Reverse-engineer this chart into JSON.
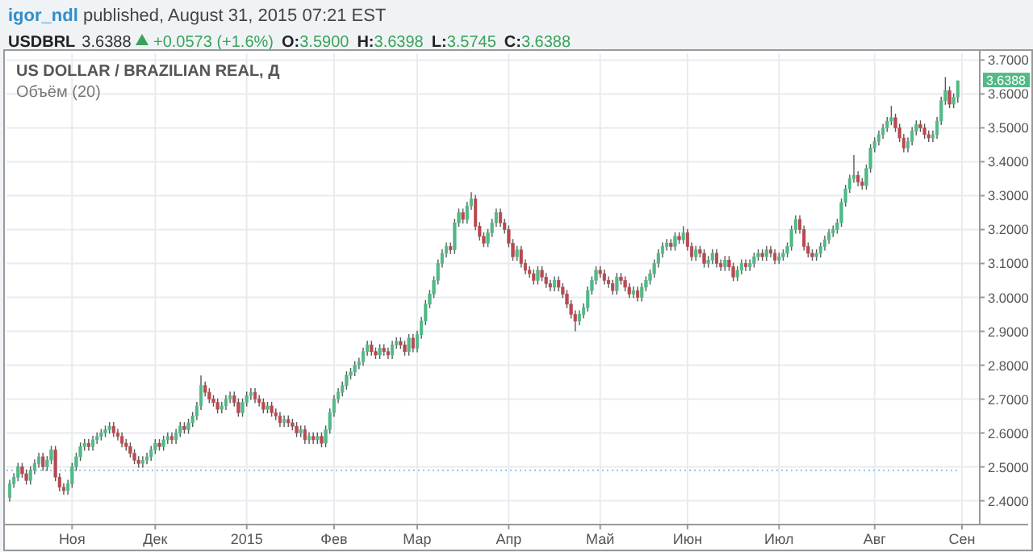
{
  "chart_data": {
    "type": "candlestick",
    "title": "US DOLLAR / BRAZILIAN REAL, Д",
    "annotations": [
      "igor_ndl published, August 31, 2015 07:21 EST",
      "USDBRL",
      "3.6388",
      "+0.0573 (+1.6%)",
      "O:3.5900",
      "H:3.6398",
      "L:3.5745",
      "C:3.6388",
      "Объём (20)",
      {
        "text": "3.6388",
        "y": 3.6388
      }
    ],
    "ylim": [
      2.33,
      3.72
    ],
    "yticks": [
      {
        "value": 2.4,
        "label": "2.4000"
      },
      {
        "value": 2.5,
        "label": "2.5000"
      },
      {
        "value": 2.6,
        "label": "2.6000"
      },
      {
        "value": 2.7,
        "label": "2.7000"
      },
      {
        "value": 2.8,
        "label": "2.8000"
      },
      {
        "value": 2.9,
        "label": "2.9000"
      },
      {
        "value": 3.0,
        "label": "3.0000"
      },
      {
        "value": 3.1,
        "label": "3.1000"
      },
      {
        "value": 3.2,
        "label": "3.2000"
      },
      {
        "value": 3.3,
        "label": "3.3000"
      },
      {
        "value": 3.4,
        "label": "3.4000"
      },
      {
        "value": 3.5,
        "label": "3.5000"
      },
      {
        "value": 3.6,
        "label": "3.6000"
      },
      {
        "value": 3.7,
        "label": "3.7000"
      }
    ],
    "categories": [
      null,
      null,
      null,
      null,
      null,
      null,
      null,
      null,
      null,
      null,
      null,
      null,
      null,
      null,
      null,
      "Ноя",
      null,
      null,
      null,
      null,
      null,
      null,
      null,
      null,
      null,
      null,
      null,
      null,
      null,
      null,
      null,
      null,
      null,
      null,
      null,
      "Дек",
      null,
      null,
      null,
      null,
      null,
      null,
      null,
      null,
      null,
      null,
      null,
      null,
      null,
      null,
      null,
      null,
      null,
      null,
      null,
      null,
      null,
      "2015",
      null,
      null,
      null,
      null,
      null,
      null,
      null,
      null,
      null,
      null,
      null,
      null,
      null,
      null,
      null,
      null,
      null,
      null,
      null,
      null,
      "Фев",
      null,
      null,
      null,
      null,
      null,
      null,
      null,
      null,
      null,
      null,
      null,
      null,
      null,
      null,
      null,
      null,
      null,
      null,
      null,
      "Мар",
      null,
      null,
      null,
      null,
      null,
      null,
      null,
      null,
      null,
      null,
      null,
      null,
      null,
      null,
      null,
      null,
      null,
      null,
      null,
      null,
      null,
      "Апр",
      null,
      null,
      null,
      null,
      null,
      null,
      null,
      null,
      null,
      null,
      null,
      null,
      null,
      null,
      null,
      null,
      null,
      null,
      null,
      null,
      null,
      "Май",
      null,
      null,
      null,
      null,
      null,
      null,
      null,
      null,
      null,
      null,
      null,
      null,
      null,
      null,
      null,
      null,
      null,
      null,
      null,
      null,
      "Июн",
      null,
      null,
      null,
      null,
      null,
      null,
      null,
      null,
      null,
      null,
      null,
      null,
      null,
      null,
      null,
      null,
      null,
      null,
      null,
      null,
      null,
      "Июл",
      null,
      null,
      null,
      null,
      null,
      null,
      null,
      null,
      null,
      null,
      null,
      null,
      null,
      null,
      null,
      null,
      null,
      null,
      null,
      null,
      null,
      null,
      "Авг",
      null,
      null,
      null,
      null,
      null,
      null,
      null,
      null,
      null,
      null,
      null,
      null,
      null,
      null,
      null,
      null,
      null,
      null,
      null,
      null,
      "Сен"
    ],
    "grid": true,
    "ref_lines": [
      {
        "axis": "y",
        "value": 2.49,
        "color": "#8fc1e8",
        "line_style": "dotted"
      }
    ],
    "ohlc": [
      [
        2.41,
        2.462,
        2.398,
        2.45
      ],
      [
        2.45,
        2.482,
        2.438,
        2.47
      ],
      [
        2.47,
        2.512,
        2.458,
        2.5
      ],
      [
        2.5,
        2.512,
        2.468,
        2.48
      ],
      [
        2.48,
        2.492,
        2.448,
        2.46
      ],
      [
        2.46,
        2.502,
        2.448,
        2.49
      ],
      [
        2.49,
        2.522,
        2.478,
        2.51
      ],
      [
        2.51,
        2.542,
        2.498,
        2.53
      ],
      [
        2.53,
        2.542,
        2.488,
        2.5
      ],
      [
        2.5,
        2.532,
        2.488,
        2.52
      ],
      [
        2.52,
        2.562,
        2.508,
        2.55
      ],
      [
        2.55,
        2.562,
        2.458,
        2.47
      ],
      [
        2.47,
        2.482,
        2.428,
        2.44
      ],
      [
        2.44,
        2.452,
        2.418,
        2.43
      ],
      [
        2.43,
        2.462,
        2.418,
        2.45
      ],
      [
        2.45,
        2.512,
        2.438,
        2.5
      ],
      [
        2.5,
        2.542,
        2.488,
        2.53
      ],
      [
        2.53,
        2.572,
        2.518,
        2.56
      ],
      [
        2.56,
        2.582,
        2.548,
        2.57
      ],
      [
        2.57,
        2.582,
        2.548,
        2.56
      ],
      [
        2.56,
        2.592,
        2.548,
        2.58
      ],
      [
        2.58,
        2.602,
        2.568,
        2.59
      ],
      [
        2.59,
        2.612,
        2.578,
        2.6
      ],
      [
        2.6,
        2.622,
        2.588,
        2.61
      ],
      [
        2.61,
        2.632,
        2.598,
        2.62
      ],
      [
        2.62,
        2.632,
        2.588,
        2.6
      ],
      [
        2.6,
        2.612,
        2.578,
        2.59
      ],
      [
        2.59,
        2.602,
        2.558,
        2.57
      ],
      [
        2.57,
        2.582,
        2.548,
        2.56
      ],
      [
        2.56,
        2.572,
        2.528,
        2.54
      ],
      [
        2.54,
        2.552,
        2.508,
        2.52
      ],
      [
        2.52,
        2.532,
        2.498,
        2.51
      ],
      [
        2.51,
        2.532,
        2.498,
        2.52
      ],
      [
        2.52,
        2.542,
        2.508,
        2.53
      ],
      [
        2.53,
        2.562,
        2.518,
        2.55
      ],
      [
        2.55,
        2.582,
        2.538,
        2.57
      ],
      [
        2.57,
        2.582,
        2.548,
        2.56
      ],
      [
        2.56,
        2.592,
        2.548,
        2.58
      ],
      [
        2.58,
        2.602,
        2.568,
        2.59
      ],
      [
        2.59,
        2.602,
        2.568,
        2.58
      ],
      [
        2.58,
        2.612,
        2.568,
        2.6
      ],
      [
        2.6,
        2.632,
        2.588,
        2.62
      ],
      [
        2.62,
        2.632,
        2.598,
        2.61
      ],
      [
        2.61,
        2.642,
        2.598,
        2.63
      ],
      [
        2.63,
        2.662,
        2.618,
        2.65
      ],
      [
        2.65,
        2.692,
        2.638,
        2.68
      ],
      [
        2.68,
        2.77,
        2.668,
        2.74
      ],
      [
        2.74,
        2.752,
        2.708,
        2.72
      ],
      [
        2.72,
        2.732,
        2.688,
        2.7
      ],
      [
        2.7,
        2.712,
        2.678,
        2.69
      ],
      [
        2.69,
        2.702,
        2.658,
        2.67
      ],
      [
        2.67,
        2.692,
        2.658,
        2.68
      ],
      [
        2.68,
        2.712,
        2.668,
        2.7
      ],
      [
        2.7,
        2.722,
        2.688,
        2.71
      ],
      [
        2.71,
        2.722,
        2.678,
        2.69
      ],
      [
        2.69,
        2.702,
        2.648,
        2.66
      ],
      [
        2.66,
        2.702,
        2.648,
        2.69
      ],
      [
        2.69,
        2.722,
        2.678,
        2.71
      ],
      [
        2.71,
        2.732,
        2.698,
        2.72
      ],
      [
        2.72,
        2.732,
        2.688,
        2.7
      ],
      [
        2.7,
        2.712,
        2.678,
        2.69
      ],
      [
        2.69,
        2.702,
        2.658,
        2.67
      ],
      [
        2.67,
        2.692,
        2.658,
        2.68
      ],
      [
        2.68,
        2.692,
        2.648,
        2.66
      ],
      [
        2.66,
        2.672,
        2.638,
        2.65
      ],
      [
        2.65,
        2.662,
        2.618,
        2.63
      ],
      [
        2.63,
        2.652,
        2.618,
        2.64
      ],
      [
        2.64,
        2.652,
        2.618,
        2.63
      ],
      [
        2.63,
        2.642,
        2.608,
        2.62
      ],
      [
        2.62,
        2.632,
        2.588,
        2.6
      ],
      [
        2.6,
        2.622,
        2.588,
        2.61
      ],
      [
        2.61,
        2.622,
        2.568,
        2.58
      ],
      [
        2.58,
        2.602,
        2.568,
        2.59
      ],
      [
        2.59,
        2.602,
        2.568,
        2.58
      ],
      [
        2.58,
        2.602,
        2.568,
        2.59
      ],
      [
        2.59,
        2.602,
        2.558,
        2.57
      ],
      [
        2.57,
        2.622,
        2.558,
        2.61
      ],
      [
        2.61,
        2.672,
        2.598,
        2.66
      ],
      [
        2.66,
        2.712,
        2.648,
        2.7
      ],
      [
        2.7,
        2.732,
        2.688,
        2.72
      ],
      [
        2.72,
        2.752,
        2.708,
        2.74
      ],
      [
        2.74,
        2.782,
        2.728,
        2.77
      ],
      [
        2.77,
        2.792,
        2.758,
        2.78
      ],
      [
        2.78,
        2.812,
        2.768,
        2.8
      ],
      [
        2.8,
        2.822,
        2.788,
        2.81
      ],
      [
        2.81,
        2.852,
        2.798,
        2.84
      ],
      [
        2.84,
        2.872,
        2.828,
        2.86
      ],
      [
        2.86,
        2.872,
        2.828,
        2.84
      ],
      [
        2.84,
        2.852,
        2.818,
        2.83
      ],
      [
        2.83,
        2.862,
        2.818,
        2.85
      ],
      [
        2.85,
        2.862,
        2.828,
        2.84
      ],
      [
        2.84,
        2.852,
        2.818,
        2.83
      ],
      [
        2.83,
        2.872,
        2.818,
        2.86
      ],
      [
        2.86,
        2.882,
        2.848,
        2.87
      ],
      [
        2.87,
        2.882,
        2.848,
        2.86
      ],
      [
        2.86,
        2.872,
        2.828,
        2.84
      ],
      [
        2.84,
        2.892,
        2.828,
        2.88
      ],
      [
        2.88,
        2.892,
        2.838,
        2.85
      ],
      [
        2.85,
        2.902,
        2.838,
        2.89
      ],
      [
        2.89,
        2.942,
        2.878,
        2.93
      ],
      [
        2.93,
        2.992,
        2.918,
        2.98
      ],
      [
        2.98,
        3.022,
        2.968,
        3.01
      ],
      [
        3.01,
        3.062,
        2.998,
        3.05
      ],
      [
        3.05,
        3.112,
        3.038,
        3.1
      ],
      [
        3.1,
        3.142,
        3.088,
        3.13
      ],
      [
        3.13,
        3.162,
        3.118,
        3.15
      ],
      [
        3.15,
        3.162,
        3.128,
        3.14
      ],
      [
        3.14,
        3.232,
        3.128,
        3.22
      ],
      [
        3.22,
        3.262,
        3.208,
        3.25
      ],
      [
        3.25,
        3.262,
        3.218,
        3.23
      ],
      [
        3.23,
        3.282,
        3.218,
        3.27
      ],
      [
        3.27,
        3.31,
        3.258,
        3.29
      ],
      [
        3.29,
        3.302,
        3.198,
        3.21
      ],
      [
        3.21,
        3.222,
        3.168,
        3.18
      ],
      [
        3.18,
        3.192,
        3.148,
        3.16
      ],
      [
        3.16,
        3.202,
        3.148,
        3.19
      ],
      [
        3.19,
        3.232,
        3.178,
        3.22
      ],
      [
        3.22,
        3.262,
        3.208,
        3.25
      ],
      [
        3.25,
        3.262,
        3.208,
        3.22
      ],
      [
        3.22,
        3.232,
        3.188,
        3.2
      ],
      [
        3.2,
        3.212,
        3.148,
        3.16
      ],
      [
        3.16,
        3.172,
        3.108,
        3.12
      ],
      [
        3.12,
        3.152,
        3.108,
        3.14
      ],
      [
        3.14,
        3.152,
        3.088,
        3.1
      ],
      [
        3.1,
        3.112,
        3.068,
        3.08
      ],
      [
        3.08,
        3.092,
        3.058,
        3.07
      ],
      [
        3.07,
        3.082,
        3.038,
        3.05
      ],
      [
        3.05,
        3.092,
        3.038,
        3.08
      ],
      [
        3.08,
        3.092,
        3.048,
        3.06
      ],
      [
        3.06,
        3.072,
        3.028,
        3.04
      ],
      [
        3.04,
        3.052,
        3.018,
        3.03
      ],
      [
        3.03,
        3.062,
        3.018,
        3.05
      ],
      [
        3.05,
        3.062,
        3.018,
        3.03
      ],
      [
        3.03,
        3.042,
        2.998,
        3.01
      ],
      [
        3.01,
        3.022,
        2.968,
        2.98
      ],
      [
        2.98,
        2.992,
        2.938,
        2.95
      ],
      [
        2.95,
        2.962,
        2.9,
        2.93
      ],
      [
        2.93,
        2.962,
        2.918,
        2.95
      ],
      [
        2.95,
        2.982,
        2.938,
        2.97
      ],
      [
        2.97,
        3.032,
        2.958,
        3.02
      ],
      [
        3.02,
        3.062,
        3.008,
        3.05
      ],
      [
        3.05,
        3.092,
        3.038,
        3.08
      ],
      [
        3.08,
        3.092,
        3.058,
        3.07
      ],
      [
        3.07,
        3.082,
        3.038,
        3.05
      ],
      [
        3.05,
        3.062,
        3.028,
        3.04
      ],
      [
        3.04,
        3.052,
        3.008,
        3.02
      ],
      [
        3.02,
        3.072,
        3.008,
        3.06
      ],
      [
        3.06,
        3.072,
        3.038,
        3.05
      ],
      [
        3.05,
        3.062,
        3.018,
        3.03
      ],
      [
        3.03,
        3.042,
        2.998,
        3.01
      ],
      [
        3.01,
        3.032,
        2.998,
        3.02
      ],
      [
        3.02,
        3.032,
        2.988,
        3.0
      ],
      [
        3.0,
        3.042,
        2.988,
        3.03
      ],
      [
        3.03,
        3.062,
        3.018,
        3.05
      ],
      [
        3.05,
        3.082,
        3.038,
        3.07
      ],
      [
        3.07,
        3.112,
        3.058,
        3.1
      ],
      [
        3.1,
        3.142,
        3.088,
        3.13
      ],
      [
        3.13,
        3.162,
        3.118,
        3.15
      ],
      [
        3.15,
        3.172,
        3.138,
        3.16
      ],
      [
        3.16,
        3.172,
        3.138,
        3.15
      ],
      [
        3.15,
        3.192,
        3.138,
        3.18
      ],
      [
        3.18,
        3.192,
        3.158,
        3.17
      ],
      [
        3.17,
        3.21,
        3.158,
        3.19
      ],
      [
        3.19,
        3.202,
        3.138,
        3.15
      ],
      [
        3.15,
        3.162,
        3.108,
        3.12
      ],
      [
        3.12,
        3.152,
        3.108,
        3.14
      ],
      [
        3.14,
        3.152,
        3.118,
        3.13
      ],
      [
        3.13,
        3.142,
        3.088,
        3.1
      ],
      [
        3.1,
        3.122,
        3.088,
        3.11
      ],
      [
        3.11,
        3.142,
        3.098,
        3.13
      ],
      [
        3.13,
        3.142,
        3.088,
        3.1
      ],
      [
        3.1,
        3.112,
        3.078,
        3.09
      ],
      [
        3.09,
        3.122,
        3.078,
        3.11
      ],
      [
        3.11,
        3.122,
        3.078,
        3.09
      ],
      [
        3.09,
        3.102,
        3.048,
        3.06
      ],
      [
        3.06,
        3.092,
        3.048,
        3.08
      ],
      [
        3.08,
        3.112,
        3.068,
        3.1
      ],
      [
        3.1,
        3.112,
        3.078,
        3.09
      ],
      [
        3.09,
        3.112,
        3.078,
        3.1
      ],
      [
        3.1,
        3.132,
        3.088,
        3.12
      ],
      [
        3.12,
        3.142,
        3.108,
        3.13
      ],
      [
        3.13,
        3.142,
        3.108,
        3.12
      ],
      [
        3.12,
        3.152,
        3.108,
        3.14
      ],
      [
        3.14,
        3.152,
        3.118,
        3.13
      ],
      [
        3.13,
        3.142,
        3.098,
        3.11
      ],
      [
        3.11,
        3.132,
        3.098,
        3.12
      ],
      [
        3.12,
        3.142,
        3.108,
        3.13
      ],
      [
        3.13,
        3.162,
        3.118,
        3.15
      ],
      [
        3.15,
        3.212,
        3.138,
        3.2
      ],
      [
        3.2,
        3.242,
        3.188,
        3.23
      ],
      [
        3.23,
        3.242,
        3.188,
        3.2
      ],
      [
        3.2,
        3.212,
        3.138,
        3.15
      ],
      [
        3.15,
        3.162,
        3.118,
        3.13
      ],
      [
        3.13,
        3.142,
        3.108,
        3.12
      ],
      [
        3.12,
        3.142,
        3.108,
        3.13
      ],
      [
        3.13,
        3.162,
        3.118,
        3.15
      ],
      [
        3.15,
        3.182,
        3.138,
        3.17
      ],
      [
        3.17,
        3.202,
        3.158,
        3.19
      ],
      [
        3.19,
        3.212,
        3.178,
        3.2
      ],
      [
        3.2,
        3.232,
        3.188,
        3.22
      ],
      [
        3.22,
        3.292,
        3.208,
        3.28
      ],
      [
        3.28,
        3.332,
        3.268,
        3.32
      ],
      [
        3.32,
        3.362,
        3.308,
        3.35
      ],
      [
        3.35,
        3.42,
        3.338,
        3.36
      ],
      [
        3.36,
        3.372,
        3.328,
        3.34
      ],
      [
        3.34,
        3.352,
        3.318,
        3.33
      ],
      [
        3.33,
        3.392,
        3.318,
        3.38
      ],
      [
        3.38,
        3.452,
        3.368,
        3.44
      ],
      [
        3.44,
        3.472,
        3.428,
        3.46
      ],
      [
        3.46,
        3.492,
        3.448,
        3.48
      ],
      [
        3.48,
        3.512,
        3.468,
        3.5
      ],
      [
        3.5,
        3.532,
        3.488,
        3.52
      ],
      [
        3.52,
        3.565,
        3.508,
        3.53
      ],
      [
        3.53,
        3.542,
        3.488,
        3.5
      ],
      [
        3.5,
        3.512,
        3.458,
        3.47
      ],
      [
        3.47,
        3.482,
        3.428,
        3.44
      ],
      [
        3.44,
        3.472,
        3.428,
        3.46
      ],
      [
        3.46,
        3.502,
        3.448,
        3.49
      ],
      [
        3.49,
        3.522,
        3.478,
        3.51
      ],
      [
        3.51,
        3.522,
        3.488,
        3.5
      ],
      [
        3.5,
        3.512,
        3.468,
        3.48
      ],
      [
        3.48,
        3.492,
        3.458,
        3.47
      ],
      [
        3.47,
        3.492,
        3.458,
        3.48
      ],
      [
        3.48,
        3.532,
        3.468,
        3.52
      ],
      [
        3.52,
        3.592,
        3.508,
        3.58
      ],
      [
        3.58,
        3.65,
        3.568,
        3.61
      ],
      [
        3.61,
        3.622,
        3.558,
        3.57
      ],
      [
        3.57,
        3.602,
        3.558,
        3.59
      ],
      [
        3.59,
        3.6398,
        3.5745,
        3.6388
      ],
      null
    ]
  }
}
